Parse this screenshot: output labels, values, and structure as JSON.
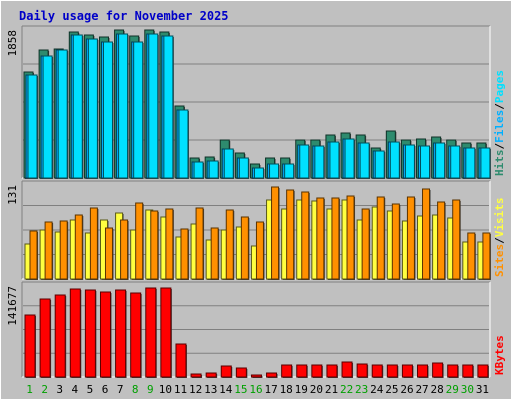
{
  "chart_data": {
    "type": "bar",
    "title": "Daily usage for November 2025",
    "categories": [
      "1",
      "2",
      "3",
      "4",
      "5",
      "6",
      "7",
      "8",
      "9",
      "10",
      "11",
      "12",
      "13",
      "14",
      "15",
      "16",
      "17",
      "18",
      "19",
      "20",
      "21",
      "22",
      "23",
      "24",
      "25",
      "26",
      "27",
      "28",
      "29",
      "30",
      "31"
    ],
    "weekend_days": [
      "1",
      "2",
      "8",
      "9",
      "15",
      "16",
      "22",
      "23",
      "29",
      "30"
    ],
    "colors": {
      "hits": "#2e8b6e",
      "files": "#00b0ff",
      "pages": "#00e0ff",
      "visits": "#ffff40",
      "sites": "#ff9000",
      "kbytes": "#ff0000",
      "background": "#c0c0c0",
      "title": "#0000c8",
      "weekday_label": "#000000",
      "weekend_label": "#00a000",
      "gridline": "#808080"
    },
    "panels": [
      {
        "ymax_label": "1858",
        "ylim": [
          0,
          1858
        ],
        "legend": [
          {
            "text": "Hits",
            "color": "#2e8b6e"
          },
          {
            "text": "Files",
            "color": "#00b0ff"
          },
          {
            "text": "Pages",
            "color": "#00e0ff"
          }
        ],
        "series": [
          {
            "name": "Hits",
            "color": "#2e8b6e",
            "values": [
              1335,
              1612,
              1620,
              1836,
              1794,
              1776,
              1860,
              1787,
              1860,
              1836,
              909,
              255,
              264,
              473,
              316,
              178,
              245,
              245,
              473,
              473,
              546,
              564,
              535,
              382,
              594,
              473,
              486,
              518,
              473,
              437,
              437
            ]
          },
          {
            "name": "Files",
            "color": "#00b0ff",
            "values": [
              1296,
              1532,
              1603,
              1790,
              1742,
              1713,
              1804,
              1713,
              1804,
              1781,
              855,
              201,
              219,
              364,
              255,
              128,
              182,
              182,
              418,
              400,
              455,
              491,
              437,
              333,
              455,
              418,
              400,
              437,
              400,
              382,
              382
            ]
          },
          {
            "name": "Pages",
            "color": "#00e0ff",
            "values": [
              1296,
              1532,
              1603,
              1790,
              1742,
              1713,
              1804,
              1713,
              1804,
              1781,
              855,
              201,
              219,
              364,
              255,
              128,
              182,
              182,
              418,
              400,
              455,
              491,
              437,
              333,
              455,
              418,
              400,
              437,
              400,
              382,
              382
            ]
          }
        ]
      },
      {
        "ymax_label": "131",
        "ylim": [
          0,
          131
        ],
        "legend": [
          {
            "text": "Sites",
            "color": "#ff9000"
          },
          {
            "text": "Visits",
            "color": "#ffff40"
          }
        ],
        "series": [
          {
            "name": "Visits",
            "color": "#ffff40",
            "values": [
              49,
              68,
              66,
              82,
              64,
              82,
              92,
              68,
              96,
              86,
              59,
              76,
              55,
              68,
              73,
              46,
              110,
              97,
              110,
              109,
              97,
              110,
              82,
              100,
              95,
              81,
              88,
              89,
              85,
              51,
              51
            ]
          },
          {
            "name": "Sites",
            "color": "#ff9000",
            "values": [
              67,
              79,
              81,
              89,
              99,
              71,
              82,
              106,
              95,
              97,
              70,
              99,
              71,
              96,
              86,
              80,
              128,
              124,
              121,
              113,
              113,
              115,
              98,
              114,
              105,
              114,
              126,
              108,
              110,
              64,
              64
            ]
          }
        ]
      },
      {
        "ymax_label": "141677",
        "ylim": [
          0,
          141677
        ],
        "legend": [
          {
            "text": "KBytes",
            "color": "#ff0000"
          }
        ],
        "series": [
          {
            "name": "KBytes",
            "color": "#ff0000",
            "values": [
              97000,
              122000,
              127000,
              137000,
              136000,
              132000,
              135000,
              131000,
              138000,
              138000,
              52000,
              4000,
              6000,
              17000,
              14000,
              3000,
              6000,
              18000,
              18000,
              18000,
              18000,
              23000,
              20000,
              18000,
              18000,
              18000,
              18000,
              22000,
              18000,
              18000,
              18000
            ]
          }
        ]
      }
    ]
  }
}
